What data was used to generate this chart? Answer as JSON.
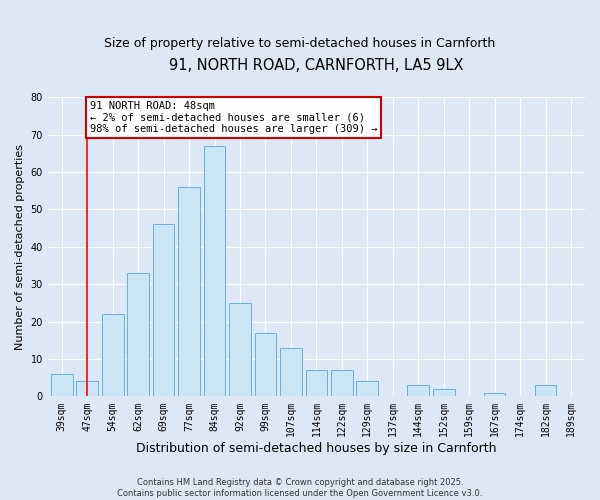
{
  "title": "91, NORTH ROAD, CARNFORTH, LA5 9LX",
  "subtitle": "Size of property relative to semi-detached houses in Carnforth",
  "xlabel": "Distribution of semi-detached houses by size in Carnforth",
  "ylabel": "Number of semi-detached properties",
  "bar_labels": [
    "39sqm",
    "47sqm",
    "54sqm",
    "62sqm",
    "69sqm",
    "77sqm",
    "84sqm",
    "92sqm",
    "99sqm",
    "107sqm",
    "114sqm",
    "122sqm",
    "129sqm",
    "137sqm",
    "144sqm",
    "152sqm",
    "159sqm",
    "167sqm",
    "174sqm",
    "182sqm",
    "189sqm"
  ],
  "bar_values": [
    6,
    4,
    22,
    33,
    46,
    56,
    67,
    25,
    17,
    13,
    7,
    7,
    4,
    0,
    3,
    2,
    0,
    1,
    0,
    3,
    0
  ],
  "bar_color": "#cce5f5",
  "bar_edge_color": "#6aafd6",
  "vline_x_index": 1,
  "vline_color": "red",
  "annotation_title": "91 NORTH ROAD: 48sqm",
  "annotation_line2": "← 2% of semi-detached houses are smaller (6)",
  "annotation_line3": "98% of semi-detached houses are larger (309) →",
  "annotation_box_color": "#ffffff",
  "annotation_box_edge": "#cc0000",
  "ylim": [
    0,
    80
  ],
  "yticks": [
    0,
    10,
    20,
    30,
    40,
    50,
    60,
    70,
    80
  ],
  "background_color": "#dce8f5",
  "plot_background": "#dce8f5",
  "grid_color": "#ffffff",
  "footer_line1": "Contains HM Land Registry data © Crown copyright and database right 2025.",
  "footer_line2": "Contains public sector information licensed under the Open Government Licence v3.0.",
  "title_fontsize": 10.5,
  "subtitle_fontsize": 9,
  "xlabel_fontsize": 9,
  "ylabel_fontsize": 8,
  "tick_fontsize": 7,
  "annotation_fontsize": 7.5,
  "footer_fontsize": 6
}
